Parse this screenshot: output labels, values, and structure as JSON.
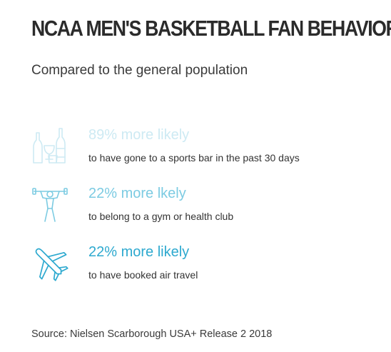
{
  "title": "NCAA MEN'S BASKETBALL FAN BEHAVIORS",
  "subtitle": "Compared to the general population",
  "stats": [
    {
      "icon": "bottles-glasses-icon",
      "headline": "89% more likely",
      "description": "to have gone to a sports bar in the past 30 days",
      "color": "#cdeaf3"
    },
    {
      "icon": "weightlifter-icon",
      "headline": "22% more lkely",
      "description": "to belong to a gym or health club",
      "color": "#7ccbe2"
    },
    {
      "icon": "airplane-icon",
      "headline": "22% more likely",
      "description": "to have booked air travel",
      "color": "#2da9cf"
    }
  ],
  "source": "Source: Nielsen Scarborough USA+ Release 2 2018"
}
